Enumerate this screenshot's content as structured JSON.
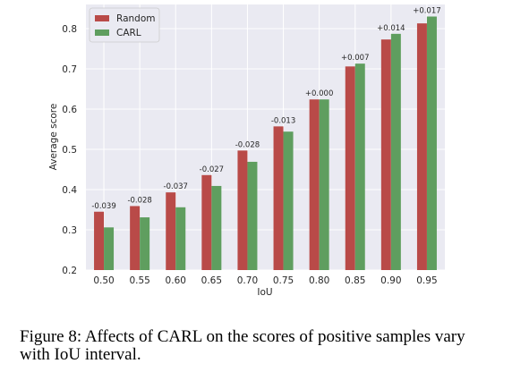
{
  "chart_data": {
    "type": "bar",
    "categories": [
      "0.50",
      "0.55",
      "0.60",
      "0.65",
      "0.70",
      "0.75",
      "0.80",
      "0.85",
      "0.90",
      "0.95"
    ],
    "series": [
      {
        "name": "Random",
        "color": "#b94a48",
        "values": [
          0.345,
          0.359,
          0.393,
          0.436,
          0.497,
          0.557,
          0.624,
          0.706,
          0.773,
          0.813
        ]
      },
      {
        "name": "CARL",
        "color": "#5f9e5f",
        "values": [
          0.306,
          0.331,
          0.356,
          0.409,
          0.469,
          0.544,
          0.624,
          0.713,
          0.787,
          0.83
        ]
      }
    ],
    "annotations": [
      "-0.039",
      "-0.028",
      "-0.037",
      "-0.027",
      "-0.028",
      "-0.013",
      "+0.000",
      "+0.007",
      "+0.014",
      "+0.017"
    ],
    "xlabel": "IoU",
    "ylabel": "Average score",
    "ylim": [
      0.2,
      0.86
    ],
    "yticks": [
      "0.2",
      "0.3",
      "0.4",
      "0.5",
      "0.6",
      "0.7",
      "0.8"
    ],
    "grid": true,
    "legend_position": "top-left",
    "background_color": "#eaeaf2"
  },
  "caption": "Figure 8: Affects of CARL on the scores of positive samples vary with IoU interval."
}
